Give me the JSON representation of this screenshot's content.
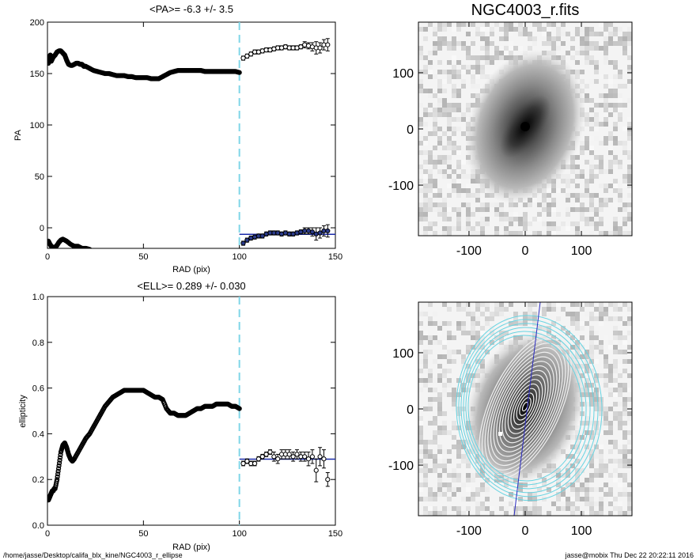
{
  "footer": {
    "path": "/home/jasse/Desktop/califa_blx_kine/NGC4003_r_ellipse",
    "user_date": "jasse@mobix  Thu Dec 22 20:22:11 2016"
  },
  "colors": {
    "mean_line": "#1a2aa8",
    "cut_line": "#7fd6e8",
    "ellipse_outer": "#66d4e2",
    "ellipse_inner": "#f0f0f0",
    "marker": "#000000",
    "marker_fill_blue": "#2a3a8a"
  },
  "chart_data": [
    {
      "type": "scatter",
      "title": "<PA>=  -6.3 +/-   3.5",
      "xlabel": "RAD (pix)",
      "ylabel": "PA",
      "xlim": [
        0,
        150
      ],
      "ylim": [
        -20,
        200
      ],
      "xticks": [
        "0",
        "50",
        "100",
        "150"
      ],
      "yticks": [
        "0",
        "50",
        "100",
        "150",
        "200"
      ],
      "cut_x": 100,
      "mean_value": -6.3,
      "mean_range": [
        100,
        150
      ],
      "series": [
        {
          "style": "dense",
          "x": [
            0.5,
            1,
            1.5,
            2,
            3,
            4,
            5,
            6,
            7,
            8,
            9,
            10,
            11,
            12,
            13,
            14,
            15,
            16,
            17,
            18,
            19,
            20,
            22,
            24,
            26,
            28,
            30,
            32,
            34,
            36,
            38,
            40,
            42,
            44,
            46,
            48,
            50,
            52,
            54,
            56,
            58,
            60,
            62,
            64,
            66,
            68,
            70,
            72,
            74,
            76,
            78,
            80,
            82,
            84,
            86,
            88,
            90,
            92,
            94,
            96,
            98,
            100
          ],
          "y": [
            160,
            165,
            168,
            162,
            166,
            168,
            171,
            172,
            172,
            170,
            168,
            163,
            159,
            158,
            158,
            159,
            160,
            160,
            159,
            159,
            157,
            157,
            155,
            153,
            152,
            151,
            150,
            150,
            149,
            148,
            148,
            148,
            147,
            147,
            146,
            146,
            146,
            146,
            145,
            145,
            145,
            147,
            149,
            151,
            152,
            153,
            153,
            153,
            153,
            153,
            153,
            153,
            152,
            152,
            152,
            152,
            152,
            152,
            152,
            152,
            152,
            151
          ]
        },
        {
          "style": "dense",
          "x": [
            0.5,
            1,
            2,
            3,
            4,
            5,
            6,
            7,
            8,
            10,
            12,
            14,
            16,
            18,
            20,
            22
          ],
          "y": [
            -13,
            -15,
            -18,
            -19,
            -19,
            -17,
            -14,
            -12,
            -11,
            -13,
            -16,
            -18,
            -18,
            -20,
            -20,
            -21
          ]
        },
        {
          "style": "errorbar",
          "x": [
            102,
            104,
            106,
            108,
            110,
            112,
            114,
            116,
            118,
            120,
            122,
            124,
            126,
            128,
            130,
            132,
            134,
            136,
            138,
            140,
            142,
            144,
            146
          ],
          "y": [
            165,
            167,
            169,
            171,
            171,
            172,
            173,
            173,
            174,
            175,
            175,
            176,
            175,
            175,
            175,
            176,
            178,
            177,
            176,
            175,
            175,
            178,
            178
          ],
          "err": [
            2,
            2,
            2,
            2,
            2,
            2,
            2,
            2,
            2,
            2,
            2,
            2,
            2,
            2,
            2,
            2,
            3,
            3,
            4,
            6,
            5,
            5,
            6
          ]
        },
        {
          "style": "errorbar_blue",
          "x": [
            102,
            104,
            106,
            108,
            110,
            112,
            114,
            116,
            118,
            120,
            122,
            124,
            126,
            128,
            130,
            132,
            134,
            136,
            138,
            140,
            142,
            144,
            146
          ],
          "y": [
            -15,
            -12,
            -10,
            -9,
            -8,
            -8,
            -6,
            -5,
            -5,
            -5,
            -6,
            -5,
            -6,
            -6,
            -5,
            -4,
            -3,
            -3,
            -4,
            -6,
            -5,
            -3,
            -3
          ],
          "err": [
            2,
            2,
            2,
            2,
            2,
            2,
            2,
            2,
            2,
            2,
            2,
            2,
            2,
            2,
            2,
            2,
            3,
            3,
            4,
            6,
            5,
            5,
            6
          ]
        }
      ]
    },
    {
      "type": "scatter",
      "title": "<ELL>= 0.289 +/-  0.030",
      "xlabel": "RAD (pix)",
      "ylabel": "ellipticity",
      "xlim": [
        0,
        150
      ],
      "ylim": [
        0.0,
        1.0
      ],
      "xticks": [
        "0",
        "50",
        "100",
        "150"
      ],
      "yticks": [
        "0.0",
        "0.2",
        "0.4",
        "0.6",
        "0.8",
        "1.0"
      ],
      "cut_x": 100,
      "mean_value": 0.289,
      "mean_range": [
        100,
        150
      ],
      "series": [
        {
          "style": "dense",
          "x": [
            0.5,
            1,
            1.5,
            2,
            2.5,
            3,
            3.5,
            4,
            5,
            6,
            7,
            8,
            9,
            10,
            11,
            12,
            13,
            14,
            16,
            18,
            20,
            22,
            24,
            26,
            28,
            30,
            32,
            34,
            36,
            38,
            40,
            42,
            44,
            46,
            48,
            50,
            52,
            54,
            56,
            58,
            60,
            62,
            64,
            66,
            68,
            70,
            72,
            74,
            76,
            78,
            80,
            82,
            84,
            86,
            88,
            90,
            92,
            94,
            96,
            98,
            100
          ],
          "y": [
            0.11,
            0.12,
            0.13,
            0.14,
            0.15,
            0.15,
            0.16,
            0.16,
            0.2,
            0.26,
            0.32,
            0.35,
            0.36,
            0.34,
            0.31,
            0.29,
            0.28,
            0.29,
            0.32,
            0.35,
            0.38,
            0.4,
            0.43,
            0.46,
            0.49,
            0.52,
            0.54,
            0.56,
            0.57,
            0.58,
            0.59,
            0.59,
            0.59,
            0.59,
            0.59,
            0.59,
            0.58,
            0.57,
            0.56,
            0.56,
            0.55,
            0.51,
            0.49,
            0.49,
            0.48,
            0.48,
            0.48,
            0.49,
            0.5,
            0.51,
            0.51,
            0.52,
            0.52,
            0.52,
            0.53,
            0.53,
            0.53,
            0.53,
            0.52,
            0.52,
            0.51
          ]
        },
        {
          "style": "errorbar",
          "x": [
            102,
            104,
            106,
            108,
            110,
            112,
            114,
            116,
            118,
            120,
            122,
            124,
            126,
            128,
            130,
            132,
            134,
            136,
            138,
            140,
            142,
            144,
            146
          ],
          "y": [
            0.27,
            0.28,
            0.27,
            0.27,
            0.29,
            0.3,
            0.31,
            0.32,
            0.3,
            0.29,
            0.31,
            0.31,
            0.31,
            0.3,
            0.31,
            0.3,
            0.3,
            0.29,
            0.3,
            0.24,
            0.3,
            0.29,
            0.2
          ],
          "err": [
            0.01,
            0.01,
            0.01,
            0.01,
            0.01,
            0.01,
            0.01,
            0.01,
            0.02,
            0.02,
            0.02,
            0.02,
            0.02,
            0.02,
            0.02,
            0.02,
            0.02,
            0.03,
            0.03,
            0.05,
            0.04,
            0.04,
            0.03
          ]
        }
      ]
    },
    {
      "type": "heatmap",
      "title": "NGC4003_r.fits",
      "xlim": [
        -190,
        190
      ],
      "ylim": [
        -190,
        190
      ],
      "xticks": [
        "-100",
        "0",
        "100"
      ],
      "yticks": [
        "-100",
        "0",
        "100"
      ]
    },
    {
      "type": "heatmap",
      "title": "",
      "xlim": [
        -190,
        190
      ],
      "ylim": [
        -190,
        190
      ],
      "xticks": [
        "-100",
        "0",
        "100"
      ],
      "yticks": [
        "-100",
        "0",
        "100"
      ],
      "overlay_ellipses": true
    }
  ]
}
